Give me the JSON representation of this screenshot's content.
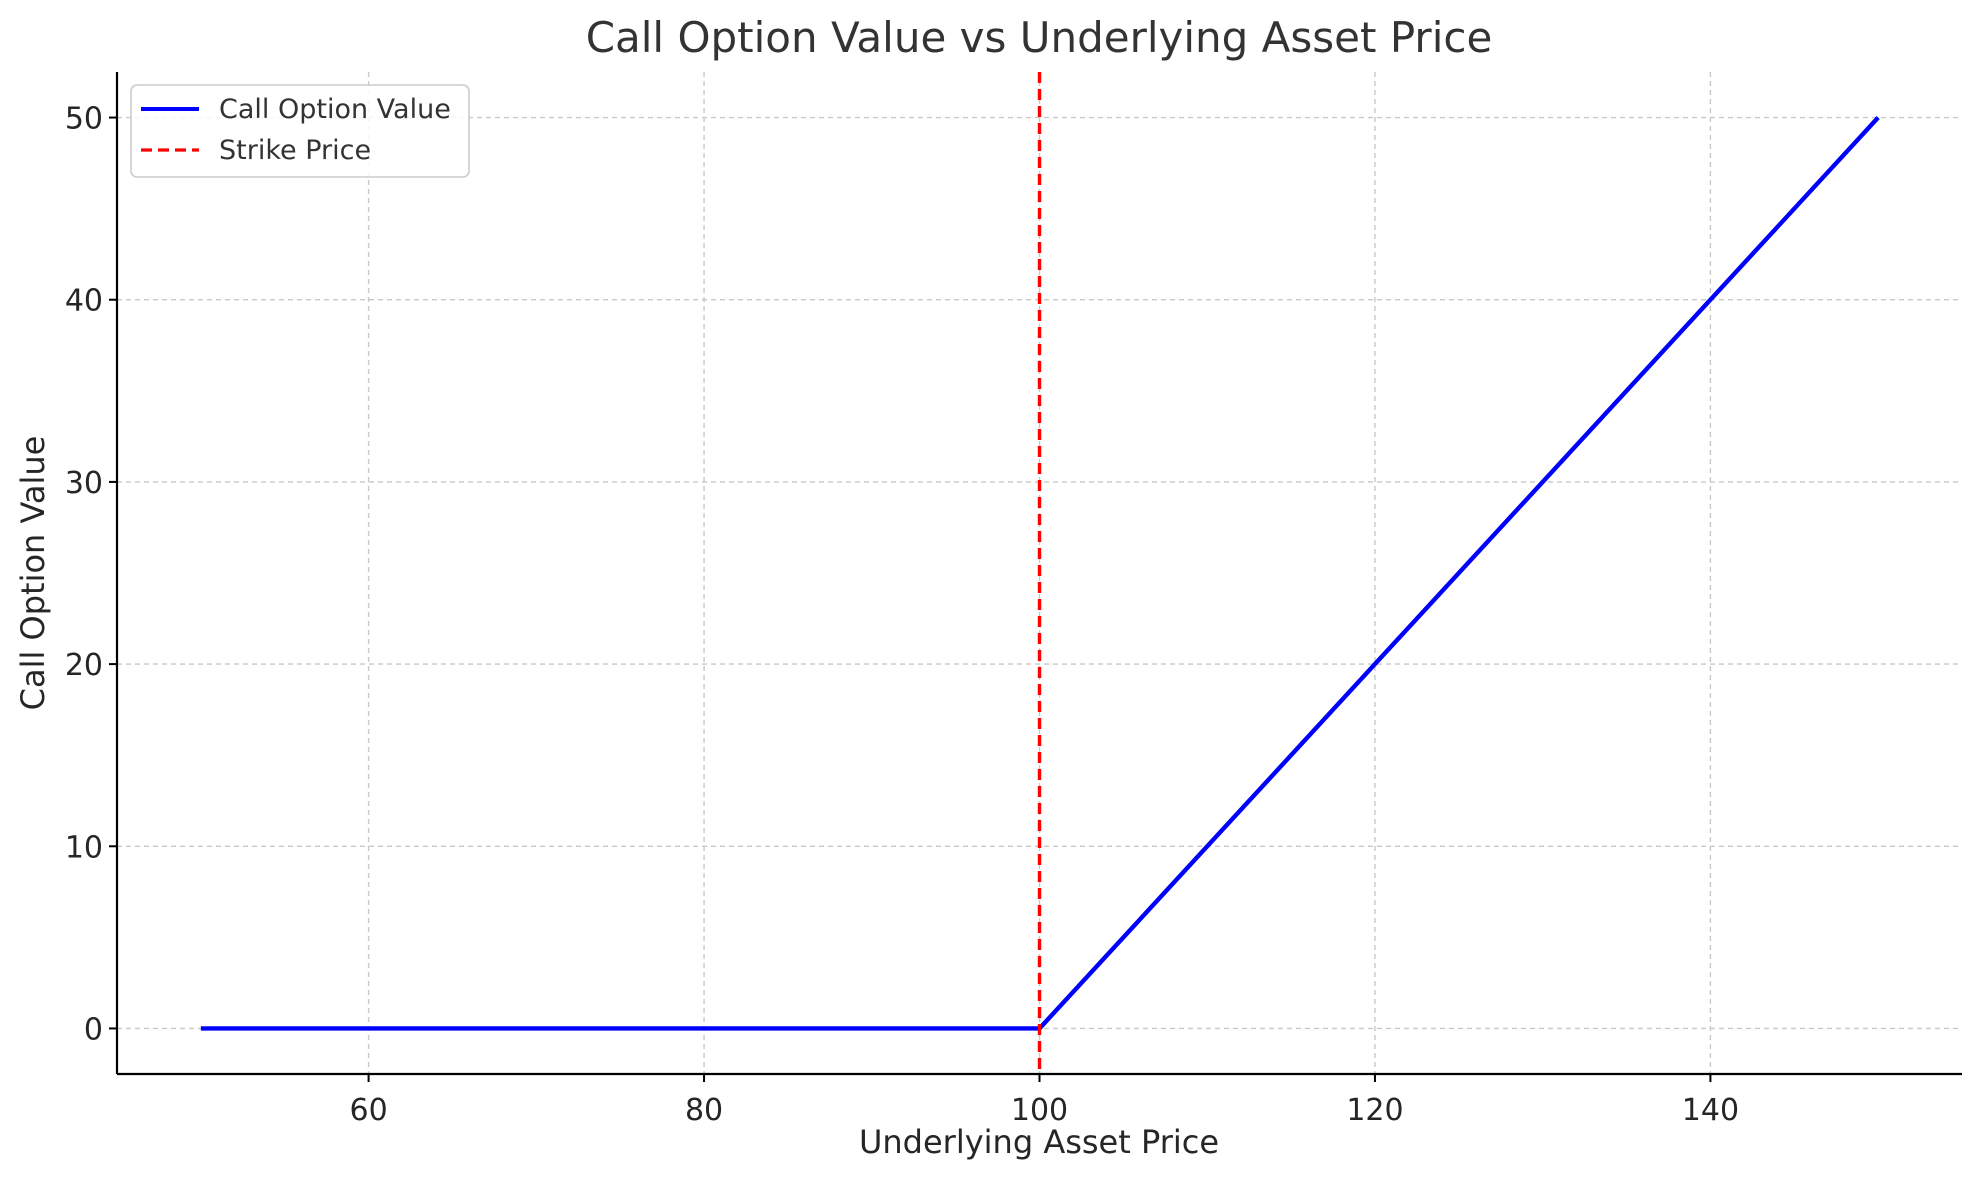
{
  "chart_data": {
    "type": "line",
    "title": "Call Option Value vs Underlying Asset Price",
    "xlabel": "Underlying Asset Price",
    "ylabel": "Call Option Value",
    "xlim": [
      45,
      155
    ],
    "ylim": [
      -2.5,
      52.5
    ],
    "x_ticks": [
      60,
      80,
      100,
      120,
      140
    ],
    "y_ticks": [
      0,
      10,
      20,
      30,
      40,
      50
    ],
    "grid": true,
    "legend_position": "top-left",
    "series": [
      {
        "name": "Call Option Value",
        "color": "#0000ff",
        "style": "solid",
        "points": [
          [
            50,
            0
          ],
          [
            100,
            0
          ],
          [
            150,
            50
          ]
        ]
      },
      {
        "name": "Strike Price",
        "color": "#ff0000",
        "style": "dashed",
        "vertical_line_x": 100
      }
    ]
  }
}
